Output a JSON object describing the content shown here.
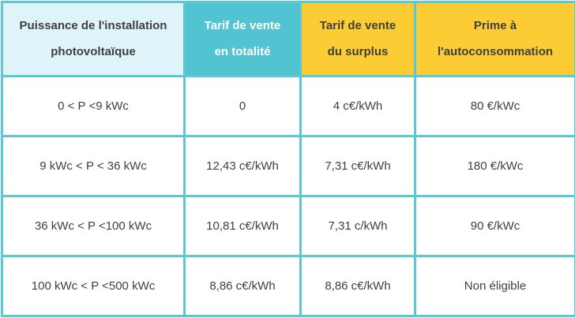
{
  "colors": {
    "border_teal": "#5bc8d4",
    "header_teal": "#52c3d0",
    "header_light_blue": "#dff4f9",
    "header_yellow": "#fbcc33",
    "text_dark": "#3f4040",
    "header_teal_text": "#ffffff"
  },
  "table": {
    "columns": [
      {
        "label": "Puissance de l'installation photovoltaïque",
        "style": "light-blue"
      },
      {
        "label": "Tarif de vente en totalité",
        "style": "teal"
      },
      {
        "label": "Tarif de vente du surplus",
        "style": "yellow"
      },
      {
        "label": "Prime à l'autoconsommation",
        "style": "yellow"
      }
    ],
    "rows": [
      [
        "0 < P <9 kWc",
        "0",
        "4 c€/kWh",
        "80 €/kWc"
      ],
      [
        "9 kWc < P < 36 kWc",
        "12,43 c€/kWh",
        "7,31 c€/kWh",
        "180 €/kWc"
      ],
      [
        "36 kWc < P <100 kWc",
        "10,81 c€/kWh",
        "7,31 c/kWh",
        "90 €/kWc"
      ],
      [
        "100 kWc < P <500 kWc",
        "8,86 c€/kWh",
        "8,86 c€/kWh",
        "Non éligible"
      ]
    ]
  }
}
